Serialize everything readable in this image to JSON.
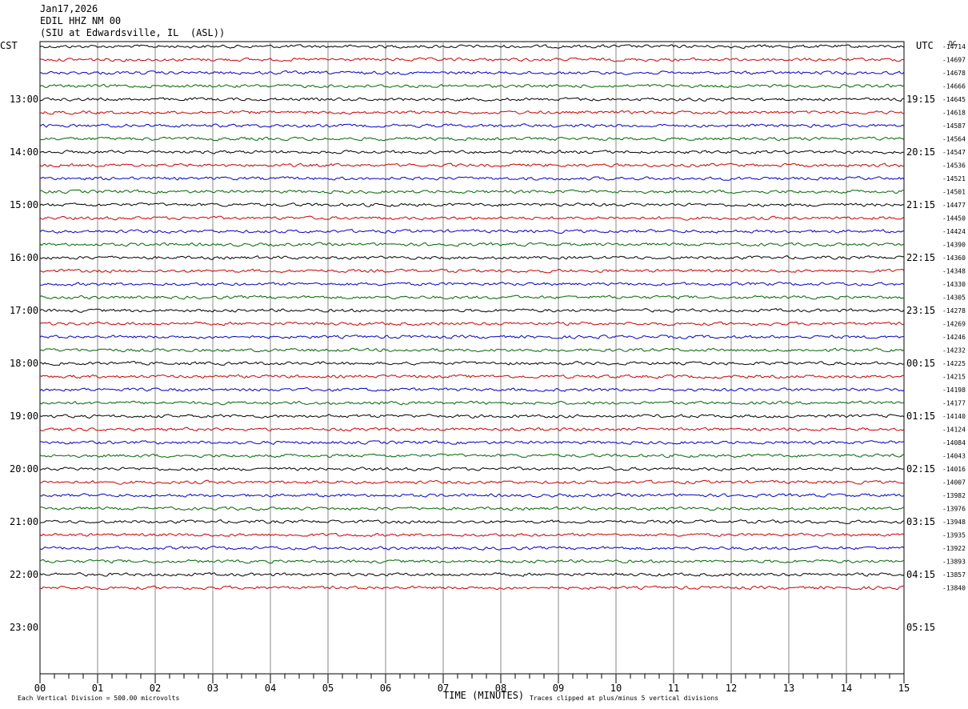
{
  "header": {
    "date": "Jan17,2026",
    "channel": "EDIL HHZ NM 00",
    "location": "(SIU at Edwardsville, IL  (ASL))"
  },
  "left_tz": "CST",
  "right_tz": "UTC",
  "dc_label": "DC",
  "footer": {
    "scale_note": "Each Vertical Division =  500.00 microvolts",
    "xlabel": "TIME (MINUTES)",
    "clip_note": "Traces clipped at plus/minus 5 vertical divisions"
  },
  "chart_data": {
    "type": "line",
    "xlabel": "TIME (MINUTES)",
    "xlim": [
      0,
      15
    ],
    "x_ticks": [
      "00",
      "01",
      "02",
      "03",
      "04",
      "05",
      "06",
      "07",
      "08",
      "09",
      "10",
      "11",
      "12",
      "13",
      "14",
      "15"
    ],
    "hour_labels_left": [
      "13:00",
      "14:00",
      "15:00",
      "16:00",
      "17:00",
      "18:00",
      "19:00",
      "20:00",
      "21:00",
      "22:00",
      "23:00"
    ],
    "hour_labels_right": [
      "19:15",
      "20:15",
      "21:15",
      "22:15",
      "23:15",
      "00:15",
      "01:15",
      "02:15",
      "03:15",
      "04:15",
      "05:15"
    ],
    "trace_colors": [
      "#000000",
      "#cc0000",
      "#0000cc",
      "#006600"
    ],
    "dc_offsets": [
      "-14714",
      "-14697",
      "-14678",
      "-14666",
      "-14645",
      "-14618",
      "-14587",
      "-14564",
      "-14547",
      "-14536",
      "-14521",
      "-14501",
      "-14477",
      "-14450",
      "-14424",
      "-14390",
      "-14360",
      "-14348",
      "-14330",
      "-14305",
      "-14278",
      "-14269",
      "-14246",
      "-14232",
      "-14225",
      "-14215",
      "-14198",
      "-14177",
      "-14140",
      "-14124",
      "-14084",
      "-14043",
      "-14016",
      "-14007",
      "-13982",
      "-13976",
      "-13948",
      "-13935",
      "-13922",
      "-13893",
      "-13857",
      "-13840"
    ]
  }
}
